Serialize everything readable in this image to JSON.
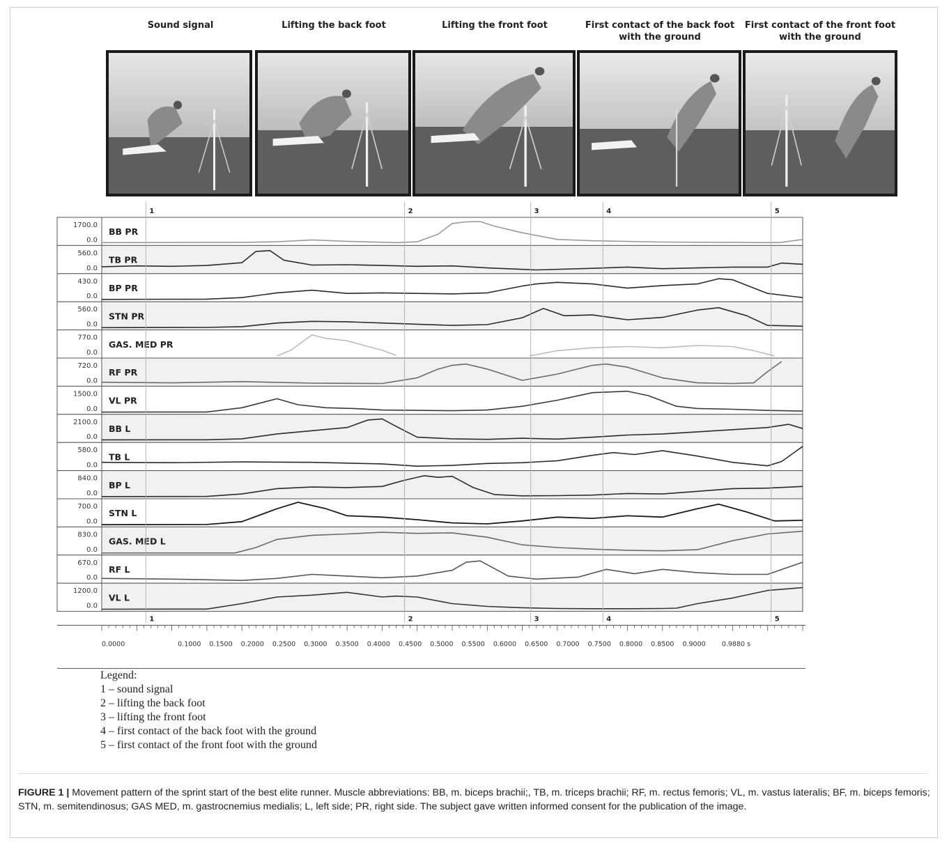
{
  "phases": [
    "Sound signal",
    "Lifting the back foot",
    "Lifting the front foot",
    "First contact of the back foot\nwith the ground",
    "First contact of the front foot\nwith the ground"
  ],
  "markers": [
    "1",
    "2",
    "3",
    "4",
    "5"
  ],
  "chart_data": {
    "type": "line",
    "x_ticks": [
      "0.0000",
      "0.1000",
      "0.1500",
      "0.2000",
      "0.2500",
      "0.3000",
      "0.3500",
      "0.4000",
      "0.4500",
      "0.5000",
      "0.5500",
      "0.6000",
      "0.6500",
      "0.7000",
      "0.7500",
      "0.8000",
      "0.8500",
      "0.9000",
      "0.9880 s"
    ],
    "markers": [
      {
        "label": "1",
        "t": 0.063
      },
      {
        "label": "2",
        "t": 0.432
      },
      {
        "label": "3",
        "t": 0.612
      },
      {
        "label": "4",
        "t": 0.715
      },
      {
        "label": "5",
        "t": 0.955
      }
    ],
    "series": [
      {
        "name": "BB PR",
        "ymax": "1700.0",
        "ymin": "0.0",
        "color": "#9a9a9a",
        "bg": "#ffffff",
        "width": 1.6,
        "t": [
          0,
          0.2,
          0.25,
          0.3,
          0.35,
          0.42,
          0.45,
          0.48,
          0.5,
          0.52,
          0.54,
          0.56,
          0.6,
          0.65,
          0.7,
          0.8,
          0.9,
          0.95,
          0.97,
          1.0
        ],
        "v": [
          60,
          80,
          120,
          260,
          160,
          60,
          120,
          700,
          1500,
          1620,
          1650,
          1300,
          800,
          300,
          200,
          100,
          80,
          60,
          80,
          300
        ]
      },
      {
        "name": "TB PR",
        "ymax": "560.0",
        "ymin": "0.0",
        "color": "#2a2a2a",
        "bg": "#f1f1f1",
        "width": 1.6,
        "t": [
          0,
          0.05,
          0.1,
          0.15,
          0.2,
          0.22,
          0.24,
          0.26,
          0.3,
          0.35,
          0.4,
          0.45,
          0.5,
          0.55,
          0.62,
          0.7,
          0.75,
          0.8,
          0.85,
          0.9,
          0.95,
          0.97,
          1.0
        ],
        "v": [
          120,
          140,
          130,
          150,
          220,
          500,
          520,
          280,
          160,
          170,
          150,
          130,
          140,
          90,
          40,
          80,
          110,
          70,
          90,
          110,
          110,
          210,
          180
        ]
      },
      {
        "name": "BP PR",
        "ymax": "430.0",
        "ymin": "0.0",
        "color": "#2a2a2a",
        "bg": "#ffffff",
        "width": 1.6,
        "t": [
          0,
          0.15,
          0.2,
          0.25,
          0.3,
          0.35,
          0.4,
          0.45,
          0.5,
          0.55,
          0.6,
          0.62,
          0.65,
          0.7,
          0.75,
          0.8,
          0.85,
          0.88,
          0.9,
          0.95,
          1.0
        ],
        "v": [
          5,
          10,
          40,
          130,
          180,
          120,
          130,
          120,
          110,
          130,
          260,
          300,
          330,
          300,
          220,
          270,
          300,
          400,
          380,
          120,
          40
        ]
      },
      {
        "name": "STN PR",
        "ymax": "560.0",
        "ymin": "0.0",
        "color": "#2a2a2a",
        "bg": "#f1f1f1",
        "width": 1.6,
        "t": [
          0,
          0.15,
          0.2,
          0.25,
          0.3,
          0.35,
          0.4,
          0.45,
          0.5,
          0.55,
          0.6,
          0.63,
          0.66,
          0.7,
          0.75,
          0.8,
          0.85,
          0.88,
          0.92,
          0.95,
          1.0
        ],
        "v": [
          5,
          10,
          30,
          120,
          160,
          150,
          120,
          90,
          60,
          80,
          250,
          480,
          300,
          320,
          200,
          260,
          440,
          500,
          300,
          60,
          40
        ]
      },
      {
        "name": "GAS. MED PR",
        "ymax": "770.0",
        "ymin": "0.0",
        "color": "#bcbcbc",
        "bg": "#ffffff",
        "width": 1.6,
        "t": [
          0.25,
          0.27,
          0.3,
          0.32,
          0.35,
          0.38,
          0.4,
          0.42,
          null,
          0.61,
          0.65,
          0.7,
          0.75,
          0.8,
          0.85,
          0.9,
          0.93,
          0.96
        ],
        "v": [
          0,
          200,
          720,
          600,
          520,
          320,
          200,
          20,
          null,
          0,
          180,
          280,
          320,
          280,
          360,
          320,
          180,
          0
        ]
      },
      {
        "name": "RF PR",
        "ymax": "720.0",
        "ymin": "0.0",
        "color": "#6a6a6a",
        "bg": "#f1f1f1",
        "width": 1.6,
        "t": [
          0,
          0.1,
          0.2,
          0.3,
          0.4,
          0.45,
          0.48,
          0.5,
          0.52,
          0.55,
          0.6,
          0.65,
          0.7,
          0.72,
          0.75,
          0.8,
          0.85,
          0.9,
          0.93,
          0.95,
          0.97
        ],
        "v": [
          60,
          40,
          80,
          30,
          20,
          200,
          480,
          600,
          640,
          480,
          120,
          320,
          600,
          640,
          540,
          200,
          40,
          20,
          40,
          400,
          720
        ]
      },
      {
        "name": "VL PR",
        "ymax": "1500.0",
        "ymin": "0.0",
        "color": "#3a3a3a",
        "bg": "#ffffff",
        "width": 1.6,
        "t": [
          0,
          0.15,
          0.2,
          0.25,
          0.28,
          0.32,
          0.36,
          0.4,
          0.5,
          0.55,
          0.6,
          0.65,
          0.7,
          0.75,
          0.78,
          0.82,
          0.85,
          0.9,
          0.95,
          1.0
        ],
        "v": [
          10,
          20,
          300,
          900,
          500,
          300,
          250,
          150,
          100,
          150,
          400,
          800,
          1300,
          1400,
          1100,
          400,
          250,
          200,
          120,
          80
        ]
      },
      {
        "name": "BB L",
        "ymax": "2100.0",
        "ymin": "0.0",
        "color": "#2a2a2a",
        "bg": "#f1f1f1",
        "width": 1.6,
        "t": [
          0,
          0.15,
          0.2,
          0.25,
          0.3,
          0.35,
          0.38,
          0.4,
          0.42,
          0.45,
          0.5,
          0.55,
          0.6,
          0.65,
          0.7,
          0.75,
          0.8,
          0.85,
          0.9,
          0.95,
          0.98,
          1.0
        ],
        "v": [
          50,
          60,
          150,
          600,
          900,
          1200,
          1900,
          2000,
          1300,
          300,
          150,
          100,
          200,
          120,
          300,
          500,
          600,
          800,
          1000,
          1200,
          1500,
          1100
        ]
      },
      {
        "name": "TB L",
        "ymax": "580.0",
        "ymin": "0.0",
        "color": "#2a2a2a",
        "bg": "#ffffff",
        "width": 1.6,
        "t": [
          0,
          0.1,
          0.2,
          0.3,
          0.4,
          0.45,
          0.5,
          0.55,
          0.6,
          0.65,
          0.7,
          0.73,
          0.76,
          0.8,
          0.85,
          0.9,
          0.95,
          0.97,
          1.0
        ],
        "v": [
          160,
          150,
          170,
          160,
          120,
          60,
          80,
          130,
          150,
          200,
          340,
          410,
          360,
          460,
          320,
          160,
          70,
          180,
          570
        ]
      },
      {
        "name": "BP L",
        "ymax": "840.0",
        "ymin": "0.0",
        "color": "#2a2a2a",
        "bg": "#f1f1f1",
        "width": 1.6,
        "t": [
          0,
          0.15,
          0.2,
          0.25,
          0.3,
          0.35,
          0.4,
          0.43,
          0.46,
          0.48,
          0.5,
          0.53,
          0.56,
          0.6,
          0.65,
          0.7,
          0.75,
          0.8,
          0.85,
          0.9,
          0.95,
          1.0
        ],
        "v": [
          5,
          10,
          100,
          300,
          360,
          340,
          380,
          600,
          780,
          720,
          760,
          340,
          80,
          30,
          40,
          60,
          120,
          100,
          200,
          300,
          320,
          380
        ]
      },
      {
        "name": "STN L",
        "ymax": "700.0",
        "ymin": "0.0",
        "color": "#1a1a1a",
        "bg": "#ffffff",
        "width": 1.8,
        "t": [
          0,
          0.15,
          0.2,
          0.25,
          0.28,
          0.32,
          0.35,
          0.4,
          0.45,
          0.5,
          0.55,
          0.6,
          0.65,
          0.7,
          0.75,
          0.8,
          0.85,
          0.88,
          0.92,
          0.96,
          1.0
        ],
        "v": [
          5,
          10,
          100,
          500,
          700,
          500,
          280,
          240,
          160,
          60,
          30,
          120,
          240,
          200,
          280,
          240,
          500,
          640,
          400,
          120,
          140
        ]
      },
      {
        "name": "GAS. MED L",
        "ymax": "830.0",
        "ymin": "0.0",
        "color": "#6a6a6a",
        "bg": "#f1f1f1",
        "width": 1.6,
        "t": [
          0,
          0.19,
          0.22,
          0.25,
          0.3,
          0.35,
          0.4,
          0.45,
          0.5,
          0.55,
          0.6,
          0.65,
          0.7,
          0.75,
          0.8,
          0.85,
          0.9,
          0.95,
          1.0
        ],
        "v": [
          0,
          0,
          200,
          500,
          650,
          700,
          760,
          720,
          740,
          580,
          300,
          200,
          140,
          100,
          80,
          120,
          450,
          700,
          800
        ]
      },
      {
        "name": "RF L",
        "ymax": "670.0",
        "ymin": "0.0",
        "color": "#555555",
        "bg": "#ffffff",
        "width": 1.6,
        "t": [
          0,
          0.1,
          0.2,
          0.25,
          0.3,
          0.35,
          0.4,
          0.45,
          0.5,
          0.52,
          0.54,
          0.58,
          0.62,
          0.68,
          0.72,
          0.76,
          0.8,
          0.85,
          0.9,
          0.95,
          1.0
        ],
        "v": [
          80,
          60,
          20,
          80,
          200,
          150,
          100,
          150,
          320,
          560,
          600,
          150,
          60,
          120,
          350,
          220,
          350,
          250,
          200,
          200,
          560
        ]
      },
      {
        "name": "VL L",
        "ymax": "1200.0",
        "ymin": "0.0",
        "color": "#333333",
        "bg": "#f1f1f1",
        "width": 1.6,
        "t": [
          0,
          0.15,
          0.2,
          0.25,
          0.3,
          0.35,
          0.4,
          0.42,
          0.45,
          0.5,
          0.55,
          0.6,
          0.65,
          0.7,
          0.75,
          0.8,
          0.82,
          0.85,
          0.9,
          0.95,
          1.0
        ],
        "v": [
          5,
          10,
          300,
          650,
          750,
          900,
          650,
          700,
          650,
          300,
          150,
          80,
          40,
          30,
          30,
          40,
          60,
          300,
          600,
          1000,
          1150
        ]
      }
    ]
  },
  "legend": {
    "title": "Legend:",
    "items": [
      "1 – sound signal",
      "2 – lifting the back foot",
      "3 – lifting the front foot",
      "4 – first contact of the back foot with the ground",
      "5 – first contact of the front foot with the ground"
    ]
  },
  "caption": {
    "label": "FIGURE 1 |",
    "text": " Movement pattern of the sprint start of the best elite runner. Muscle abbreviations: BB, m. biceps brachii;, TB, m. triceps brachii; RF, m. rectus femoris; VL, m. vastus lateralis; BF, m. biceps femoris; STN, m. semitendinosus; GAS MED, m. gastrocnemius medialis; L, left side; PR, right side. The subject gave written informed consent for the publication of the image."
  }
}
